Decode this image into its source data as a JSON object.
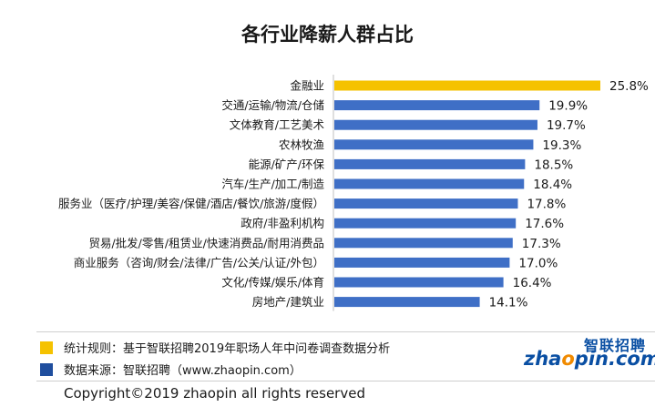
{
  "chart_data": {
    "type": "bar",
    "orientation": "horizontal",
    "title": "各行业降薪人群占比",
    "categories": [
      "金融业",
      "交通/运输/物流/仓储",
      "文体教育/工艺美术",
      "农林牧渔",
      "能源/矿产/环保",
      "汽车/生产/加工/制造",
      "服务业（医疗/护理/美容/保健/酒店/餐饮/旅游/度假）",
      "政府/非盈利机构",
      "贸易/批发/零售/租赁业/快速消费品/耐用消费品",
      "商业服务（咨询/财会/法律/广告/公关/认证/外包）",
      "文化/传媒/娱乐/体育",
      "房地产/建筑业"
    ],
    "values": [
      25.8,
      19.9,
      19.7,
      19.3,
      18.5,
      18.4,
      17.8,
      17.6,
      17.3,
      17.0,
      16.4,
      14.1
    ],
    "value_labels": [
      "25.8%",
      "19.9%",
      "19.7%",
      "19.3%",
      "18.5%",
      "18.4%",
      "17.8%",
      "17.6%",
      "17.3%",
      "17.0%",
      "16.4%",
      "14.1%"
    ],
    "highlight_index": 0,
    "colors": {
      "highlight": "#f5c200",
      "bar": "#3f6fc6"
    },
    "xlim": [
      0,
      25.8
    ],
    "xlabel": "",
    "ylabel": "",
    "grid": false
  },
  "legend": [
    {
      "color": "#f5c200",
      "text": "统计规则：基于智联招聘2019年职场人年中问卷调查数据分析"
    },
    {
      "color": "#1f4e9e",
      "text": "数据来源：智联招聘（www.zhaopin.com）"
    }
  ],
  "copyright": "Copyright©2019 zhaopin all rights reserved",
  "logo": {
    "cn": "智联招聘",
    "en_main": "zhaopin",
    "en_accent": "o",
    "en_tail": ".com"
  }
}
